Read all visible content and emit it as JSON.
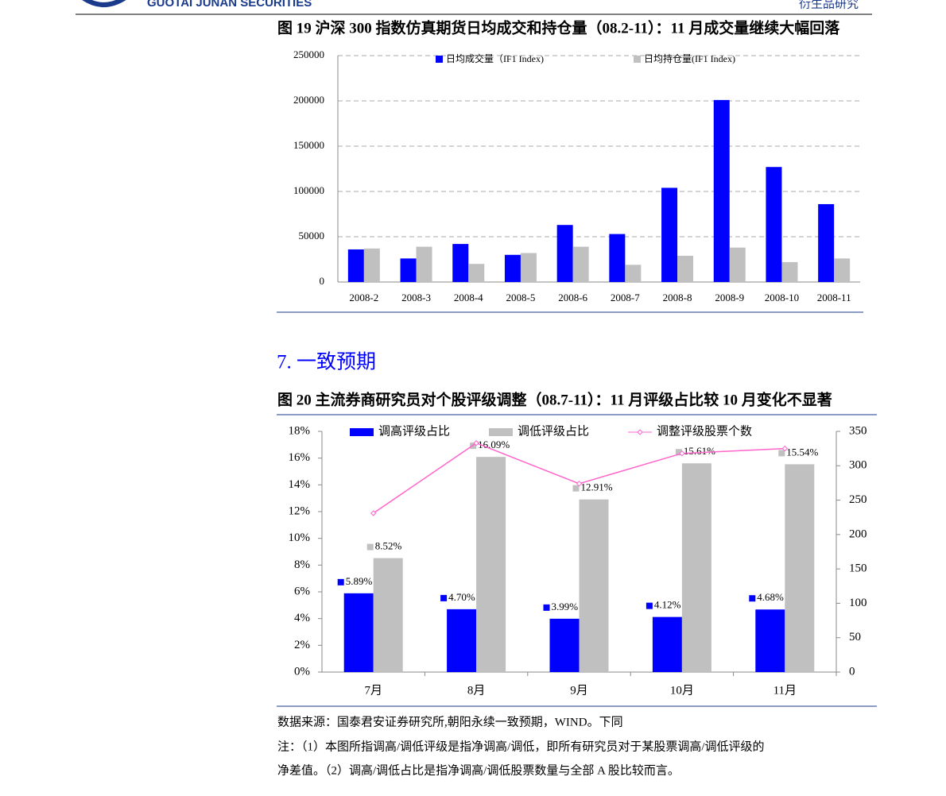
{
  "header": {
    "logo_text": "GUOTAI JUNAN SECURITIES",
    "section": "衍生品研究"
  },
  "chart_data": [
    {
      "type": "bar",
      "title": "图 19  沪深 300 指数仿真期货日均成交和持仓量（08.2-11）：11 月成交量继续大幅回落",
      "categories": [
        "2008-2",
        "2008-3",
        "2008-4",
        "2008-5",
        "2008-6",
        "2008-7",
        "2008-8",
        "2008-9",
        "2008-10",
        "2008-11"
      ],
      "series": [
        {
          "name": "日均成交量（IF1 Index)",
          "color": "#0000ff",
          "values": [
            36000,
            26000,
            42000,
            30000,
            63000,
            53000,
            104000,
            201000,
            127000,
            86000
          ]
        },
        {
          "name": "日均持仓量(IF1 Index)",
          "color": "#c0c0c0",
          "values": [
            37000,
            39000,
            20000,
            32000,
            39000,
            19000,
            29000,
            38000,
            22000,
            26000
          ]
        }
      ],
      "ylim": [
        0,
        250000
      ],
      "yticks": [
        0,
        50000,
        100000,
        150000,
        200000,
        250000
      ],
      "grid": true,
      "legend": "top"
    },
    {
      "type": "bar",
      "title": "图 20  主流券商研究员对个股评级调整（08.7-11）：11 月评级占比较 10 月变化不显著",
      "categories": [
        "7月",
        "8月",
        "9月",
        "10月",
        "11月"
      ],
      "series": [
        {
          "name": "调高评级占比",
          "color": "#0000ff",
          "values": [
            5.89,
            4.7,
            3.99,
            4.12,
            4.68
          ],
          "value_labels": [
            "5.89%",
            "4.70%",
            "3.99%",
            "4.12%",
            "4.68%"
          ]
        },
        {
          "name": "调低评级占比",
          "color": "#c0c0c0",
          "values": [
            8.52,
            16.09,
            12.91,
            15.61,
            15.54
          ],
          "value_labels": [
            "8.52%",
            "16.09%",
            "12.91%",
            "15.61%",
            "15.54%"
          ]
        },
        {
          "name": "调整评级股票个数",
          "color": "#ff66cc",
          "type": "line",
          "axis": "y2",
          "values": [
            231,
            333,
            274,
            318,
            325
          ]
        }
      ],
      "ylim": [
        0,
        18
      ],
      "yticks": [
        {
          "value": 0,
          "label": "0%"
        },
        {
          "value": 2,
          "label": "2%"
        },
        {
          "value": 4,
          "label": "4%"
        },
        {
          "value": 6,
          "label": "6%"
        },
        {
          "value": 8,
          "label": "8%"
        },
        {
          "value": 10,
          "label": "10%"
        },
        {
          "value": 12,
          "label": "12%"
        },
        {
          "value": 14,
          "label": "14%"
        },
        {
          "value": 16,
          "label": "16%"
        },
        {
          "value": 18,
          "label": "18%"
        }
      ],
      "y2lim": [
        0,
        350
      ],
      "y2ticks": [
        0,
        50,
        100,
        150,
        200,
        250,
        300,
        350
      ],
      "grid": false,
      "legend": "top"
    }
  ],
  "section_heading": "7.  一致预期",
  "notes": {
    "source": "数据来源：国泰君安证券研究所,朝阳永续一致预期，WIND。下同",
    "lines": [
      "注：（1）本图所指调高/调低评级是指净调高/调低，即所有研究员对于某股票调高/调低评级的",
      "净差值。（2）调高/调低占比是指净调高/调低股票数量与全部 A 股比较而言。"
    ]
  }
}
